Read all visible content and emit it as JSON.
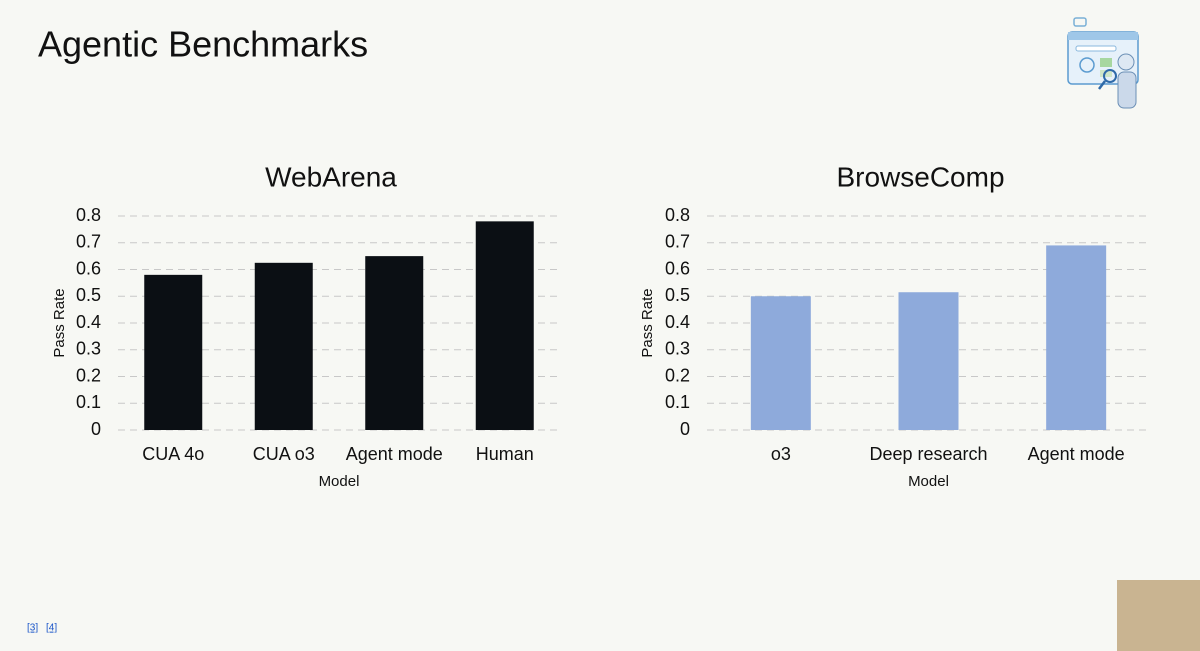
{
  "title": "Agentic Benchmarks",
  "references": [
    "[3]",
    "[4]"
  ],
  "chart_data": [
    {
      "type": "bar",
      "title": "WebArena",
      "x_label": "Model",
      "y_label": "Pass Rate",
      "categories": [
        "CUA 4o",
        "CUA o3",
        "Agent mode",
        "Human"
      ],
      "values": [
        0.58,
        0.625,
        0.65,
        0.78
      ],
      "color": "#0b0f14",
      "ylim": [
        0,
        0.8
      ],
      "yticks": [
        0,
        0.1,
        0.2,
        0.3,
        0.4,
        0.5,
        0.6,
        0.7,
        0.8
      ],
      "grid": true
    },
    {
      "type": "bar",
      "title": "BrowseComp",
      "x_label": "Model",
      "y_label": "Pass Rate",
      "categories": [
        "o3",
        "Deep research",
        "Agent mode"
      ],
      "values": [
        0.5,
        0.515,
        0.69
      ],
      "color": "#8eaadb",
      "ylim": [
        0,
        0.8
      ],
      "yticks": [
        0,
        0.1,
        0.2,
        0.3,
        0.4,
        0.5,
        0.6,
        0.7,
        0.8
      ],
      "grid": true
    }
  ]
}
